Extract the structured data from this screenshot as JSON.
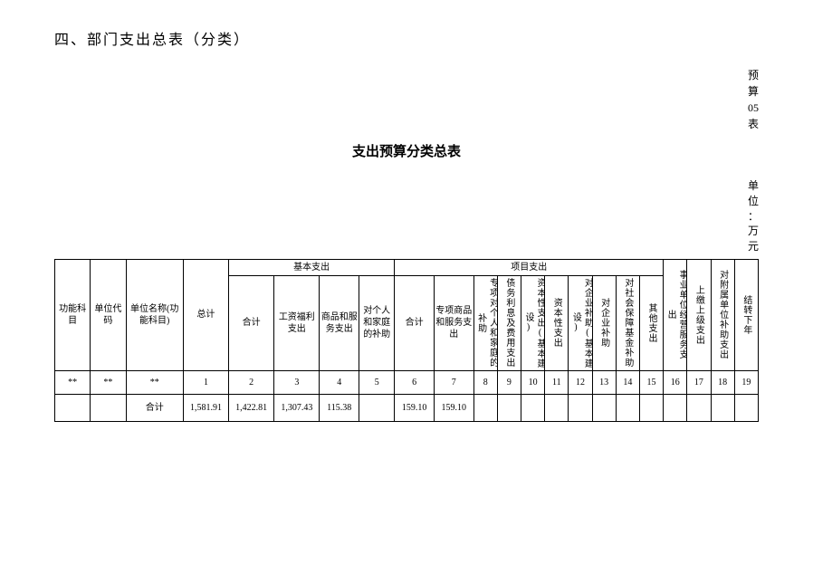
{
  "section_title": "四、部门支出总表（分类）",
  "top_right": [
    "预",
    "算",
    "05",
    "表"
  ],
  "table_title": "支出预算分类总表",
  "unit_right": [
    "单",
    "位",
    "：",
    "万",
    "元"
  ],
  "headers": {
    "h0": "功能科目",
    "h1": "单位代码",
    "h2": "单位名称(功能科目)",
    "h3": "总计",
    "basic_group": "基本支出",
    "project_group": "项目支出",
    "b1": "合计",
    "b2": "工资福利支出",
    "b3": "商品和服务支出",
    "b4": "对个人和家庭的补助",
    "p1": "合计",
    "p2": "专项商品和服务支出",
    "p3": "专项对个人和家庭的补助",
    "p4": "债务利息及费用支出",
    "p5": "资本性支出(基本建设)",
    "p6": "资本性支出",
    "p7": "对企业补助(基本建设)",
    "p8": "对企业补助",
    "p9": "对社会保障基金补助",
    "p10": "其他支出",
    "r1": "事业单位经营服务支出",
    "r2": "上缴上级支出",
    "r3": "对附属单位补助支出",
    "r4": "结转下年"
  },
  "num_row": [
    "**",
    "**",
    "**",
    "1",
    "2",
    "3",
    "4",
    "5",
    "6",
    "7",
    "8",
    "9",
    "10",
    "11",
    "12",
    "13",
    "14",
    "15",
    "16",
    "17",
    "18",
    "19"
  ],
  "data_row": {
    "c0": "",
    "c1": "",
    "c2": "合计",
    "c3": "1,581.91",
    "c4": "1,422.81",
    "c5": "1,307.43",
    "c6": "115.38",
    "c7": "",
    "c8": "159.10",
    "c9": "159.10",
    "c10": "",
    "c11": "",
    "c12": "",
    "c13": "",
    "c14": "",
    "c15": "",
    "c16": "",
    "c17": "",
    "c18": "",
    "c19": "",
    "c20": "",
    "c21": ""
  }
}
